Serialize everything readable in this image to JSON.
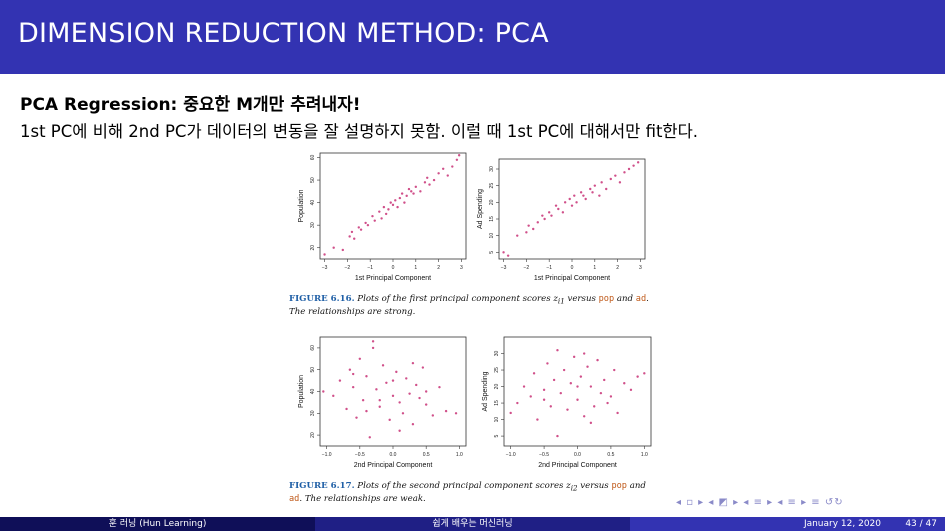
{
  "slide": {
    "title": "DIMENSION REDUCTION METHOD: PCA",
    "heading": "PCA Regression: 중요한 M개만 추려내자!",
    "body": "1st PC에 비해 2nd PC가 데이터의 변동을 잘 설명하지 못함. 이럴 때 1st PC에 대해서만 fit한다."
  },
  "figure_616": {
    "label": "FIGURE 6.16.",
    "text_a": "Plots of the first principal component scores z",
    "sub": "i1",
    "text_b": " versus ",
    "code1": "pop",
    "text_c": " and ",
    "code2": "ad",
    "text_d": ". The relationships are strong."
  },
  "figure_617": {
    "label": "FIGURE 6.17.",
    "text_a": "Plots of the second principal component scores z",
    "sub": "i2",
    "text_b": " versus ",
    "code1": "pop",
    "text_c": " and ",
    "code2": "ad",
    "text_d": ". The relationships are weak."
  },
  "colors": {
    "title_bar": "#3333b2",
    "points": "#d0508a",
    "caption_label": "#1f5fa6",
    "caption_code": "#c05a1a"
  },
  "chart_data": [
    {
      "type": "scatter",
      "xlabel": "1st Principal Component",
      "ylabel": "Population",
      "xlim": [
        -3.2,
        3.2
      ],
      "ylim": [
        15,
        62
      ],
      "xticks": [
        "−3",
        "−2",
        "−1",
        "0",
        "1",
        "2",
        "3"
      ],
      "xtick_values": [
        -3,
        -2,
        -1,
        0,
        1,
        2,
        3
      ],
      "yticks": [
        "20",
        "30",
        "40",
        "50",
        "60"
      ],
      "ytick_values": [
        20,
        30,
        40,
        50,
        60
      ],
      "x": [
        -3.0,
        -2.6,
        -2.2,
        -1.9,
        -1.8,
        -1.7,
        -1.5,
        -1.4,
        -1.2,
        -1.1,
        -0.9,
        -0.8,
        -0.6,
        -0.5,
        -0.4,
        -0.3,
        -0.2,
        -0.1,
        0.0,
        0.1,
        0.2,
        0.3,
        0.4,
        0.5,
        0.6,
        0.7,
        0.8,
        0.9,
        1.0,
        1.2,
        1.4,
        1.5,
        1.6,
        1.8,
        2.0,
        2.2,
        2.4,
        2.6,
        2.8,
        2.9
      ],
      "y": [
        17,
        20,
        19,
        25,
        27,
        24,
        29,
        28,
        31,
        30,
        34,
        32,
        36,
        33,
        38,
        35,
        37,
        40,
        39,
        41,
        38,
        42,
        44,
        40,
        43,
        46,
        45,
        44,
        47,
        45,
        49,
        51,
        48,
        50,
        53,
        55,
        52,
        56,
        59,
        61
      ]
    },
    {
      "type": "scatter",
      "xlabel": "1st Principal Component",
      "ylabel": "Ad Spending",
      "xlim": [
        -3.2,
        3.2
      ],
      "ylim": [
        3,
        33
      ],
      "xticks": [
        "−3",
        "−2",
        "−1",
        "0",
        "1",
        "2",
        "3"
      ],
      "xtick_values": [
        -3,
        -2,
        -1,
        0,
        1,
        2,
        3
      ],
      "yticks": [
        "5",
        "10",
        "15",
        "20",
        "25",
        "30"
      ],
      "ytick_values": [
        5,
        10,
        15,
        20,
        25,
        30
      ],
      "x": [
        -3.0,
        -2.8,
        -2.4,
        -2.0,
        -1.9,
        -1.7,
        -1.5,
        -1.3,
        -1.2,
        -1.0,
        -0.9,
        -0.7,
        -0.6,
        -0.4,
        -0.3,
        -0.1,
        0.0,
        0.1,
        0.2,
        0.4,
        0.5,
        0.6,
        0.8,
        0.9,
        1.0,
        1.2,
        1.3,
        1.5,
        1.7,
        1.9,
        2.1,
        2.3,
        2.5,
        2.7,
        2.9
      ],
      "y": [
        5,
        4,
        10,
        11,
        13,
        12,
        14,
        16,
        15,
        17,
        16,
        19,
        18,
        17,
        20,
        21,
        19,
        22,
        20,
        23,
        22,
        21,
        24,
        23,
        25,
        22,
        26,
        24,
        27,
        28,
        26,
        29,
        30,
        31,
        32
      ]
    },
    {
      "type": "scatter",
      "xlabel": "2nd Principal Component",
      "ylabel": "Population",
      "xlim": [
        -1.1,
        1.1
      ],
      "ylim": [
        15,
        65
      ],
      "xticks": [
        "−1.0",
        "−0.5",
        "0.0",
        "0.5",
        "1.0"
      ],
      "xtick_values": [
        -1.0,
        -0.5,
        0.0,
        0.5,
        1.0
      ],
      "yticks": [
        "20",
        "30",
        "40",
        "50",
        "60"
      ],
      "ytick_values": [
        20,
        30,
        40,
        50,
        60
      ],
      "x": [
        -1.05,
        -0.9,
        -0.8,
        -0.7,
        -0.65,
        -0.6,
        -0.55,
        -0.5,
        -0.45,
        -0.4,
        -0.35,
        -0.3,
        -0.25,
        -0.2,
        -0.15,
        -0.1,
        -0.05,
        0.0,
        0.05,
        0.1,
        0.15,
        0.2,
        0.25,
        0.3,
        0.35,
        0.4,
        0.45,
        0.5,
        0.6,
        0.7,
        0.8,
        0.95,
        -0.3,
        0.1,
        -0.6,
        0.3,
        -0.2,
        0.5,
        -0.4,
        0.0
      ],
      "y": [
        40,
        38,
        45,
        32,
        50,
        42,
        28,
        55,
        36,
        47,
        19,
        60,
        41,
        33,
        52,
        44,
        27,
        38,
        49,
        35,
        30,
        46,
        39,
        25,
        43,
        37,
        51,
        34,
        29,
        42,
        31,
        30,
        63,
        22,
        48,
        53,
        36,
        40,
        31,
        45
      ]
    },
    {
      "type": "scatter",
      "xlabel": "2nd Principal Component",
      "ylabel": "Ad Spending",
      "xlim": [
        -1.1,
        1.1
      ],
      "ylim": [
        2,
        35
      ],
      "xticks": [
        "−1.0",
        "−0.5",
        "0.0",
        "0.5",
        "1.0"
      ],
      "xtick_values": [
        -1.0,
        -0.5,
        0.0,
        0.5,
        1.0
      ],
      "yticks": [
        "5",
        "10",
        "15",
        "20",
        "25",
        "30"
      ],
      "ytick_values": [
        5,
        10,
        15,
        20,
        25,
        30
      ],
      "x": [
        -1.0,
        -0.9,
        -0.8,
        -0.7,
        -0.65,
        -0.6,
        -0.5,
        -0.45,
        -0.4,
        -0.35,
        -0.3,
        -0.25,
        -0.2,
        -0.15,
        -0.1,
        -0.05,
        0.0,
        0.05,
        0.1,
        0.15,
        0.2,
        0.25,
        0.3,
        0.35,
        0.4,
        0.5,
        0.55,
        0.6,
        0.7,
        0.8,
        0.9,
        1.0,
        -0.3,
        0.1,
        -0.5,
        0.2,
        0.0,
        0.45
      ],
      "y": [
        12,
        15,
        20,
        17,
        24,
        10,
        19,
        27,
        14,
        22,
        31,
        18,
        25,
        13,
        21,
        29,
        16,
        23,
        11,
        26,
        20,
        14,
        28,
        18,
        22,
        17,
        25,
        12,
        21,
        19,
        23,
        24,
        5,
        30,
        16,
        9,
        20,
        15
      ]
    }
  ],
  "footer": {
    "author": "훈 러닝 (Hun Learning)",
    "course": "쉽게 배우는 머신러닝",
    "date": "January 12, 2020",
    "page": "43 / 47",
    "nav": "◂ ▫ ▸ ◂ ◩ ▸ ◂ ≡ ▸ ◂ ≡ ▸  ≡  ↺↻"
  }
}
